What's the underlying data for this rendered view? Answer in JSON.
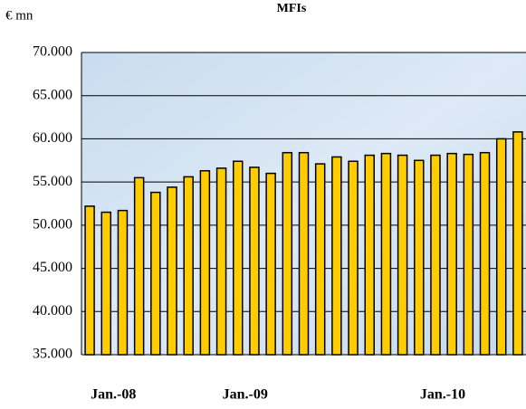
{
  "chart_data": {
    "type": "bar",
    "title": "MFIs",
    "y_label": "€ mn",
    "categories": [
      null,
      "Jan.-08",
      null,
      null,
      null,
      null,
      null,
      null,
      null,
      "Jan.-09",
      null,
      null,
      null,
      null,
      null,
      null,
      null,
      null,
      null,
      null,
      null,
      "Jan.-10",
      null,
      null,
      null,
      null,
      null
    ],
    "values": [
      52200,
      51500,
      51700,
      55500,
      53800,
      54400,
      55600,
      56300,
      56600,
      57400,
      56700,
      56000,
      58400,
      58400,
      57100,
      57900,
      57400,
      58100,
      58300,
      58100,
      57500,
      58100,
      58300,
      58200,
      58400,
      60000,
      60800
    ],
    "color": "#ffcc00",
    "ylim": [
      35000,
      70000
    ],
    "yticks": [
      {
        "value": 35000,
        "label": "35.000"
      },
      {
        "value": 40000,
        "label": "40.000"
      },
      {
        "value": 45000,
        "label": "45.000"
      },
      {
        "value": 50000,
        "label": "50.000"
      },
      {
        "value": 55000,
        "label": "55.000"
      },
      {
        "value": 60000,
        "label": "60.000"
      },
      {
        "value": 65000,
        "label": "65.000"
      },
      {
        "value": 70000,
        "label": "70.000"
      }
    ],
    "grid": true
  }
}
